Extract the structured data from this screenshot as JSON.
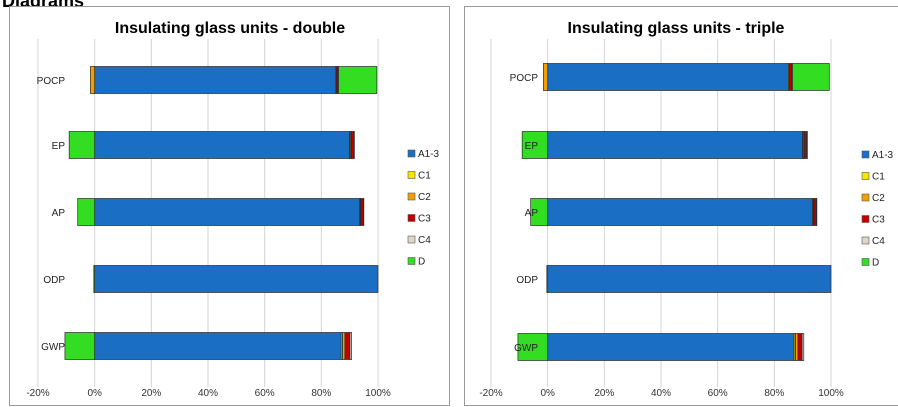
{
  "page": {
    "heading": "Diagrams"
  },
  "chart_data": [
    {
      "type": "bar",
      "orientation": "horizontal",
      "stacked": true,
      "title": "Insulating glass units - double",
      "categories": [
        "POCP",
        "EP",
        "AP",
        "ODP",
        "GWP"
      ],
      "xlim": [
        -20,
        100
      ],
      "xticks": [
        "-20%",
        "0%",
        "20%",
        "40%",
        "60%",
        "80%",
        "100%"
      ],
      "grid": true,
      "legend_position": "right",
      "series": [
        {
          "name": "A1-3",
          "color": "#1a6fc4",
          "values": [
            85,
            90,
            93.5,
            100,
            87
          ]
        },
        {
          "name": "C1",
          "color": "#f5e600",
          "values": [
            0.3,
            0.3,
            0.3,
            0,
            0.5
          ]
        },
        {
          "name": "C2",
          "color": "#f0a000",
          "values": [
            -1.5,
            0.3,
            0.2,
            0,
            0.8
          ]
        },
        {
          "name": "C3",
          "color": "#c00000",
          "values": [
            0.5,
            0.8,
            0.8,
            0,
            1.8
          ]
        },
        {
          "name": "C4",
          "color": "#dcd8c8",
          "values": [
            0.3,
            0.3,
            0.2,
            0,
            0.6
          ]
        },
        {
          "name": "D",
          "color": "#33dd22",
          "values": [
            13.5,
            -9,
            -6,
            -0.3,
            -10.5
          ]
        }
      ]
    },
    {
      "type": "bar",
      "orientation": "horizontal",
      "stacked": true,
      "title": "Insulating glass units - triple",
      "categories": [
        "POCP",
        "EP",
        "AP",
        "ODP",
        "GWP"
      ],
      "xlim": [
        -20,
        100
      ],
      "xticks": [
        "-20%",
        "0%",
        "20%",
        "40%",
        "60%",
        "80%",
        "100%"
      ],
      "grid": true,
      "legend_position": "right",
      "series": [
        {
          "name": "A1-3",
          "color": "#1a6fc4",
          "values": [
            85,
            90,
            93.5,
            100,
            87
          ]
        },
        {
          "name": "C1",
          "color": "#f5e600",
          "values": [
            0.3,
            0.3,
            0.3,
            0,
            0.5
          ]
        },
        {
          "name": "C2",
          "color": "#f0a000",
          "values": [
            -1.5,
            0.3,
            0.2,
            0,
            0.8
          ]
        },
        {
          "name": "C3",
          "color": "#c00000",
          "values": [
            0.8,
            0.8,
            0.8,
            0,
            1.5
          ]
        },
        {
          "name": "C4",
          "color": "#dcd8c8",
          "values": [
            0.3,
            0.3,
            0.2,
            0,
            0.6
          ]
        },
        {
          "name": "D",
          "color": "#33dd22",
          "values": [
            13,
            -9,
            -6,
            -0.3,
            -10.5
          ]
        }
      ]
    }
  ]
}
